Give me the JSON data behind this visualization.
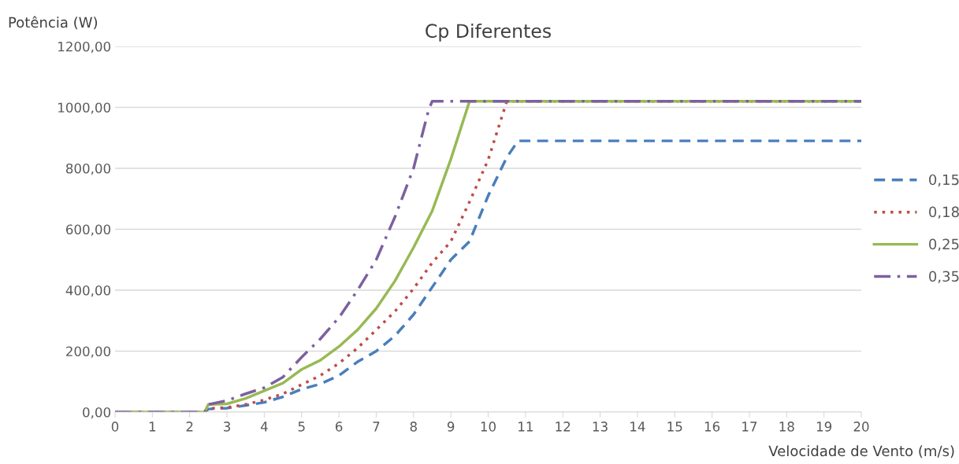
{
  "chart_data": {
    "type": "line",
    "title": "Cp Diferentes",
    "xlabel": "Velocidade de Vento (m/s)",
    "ylabel": "Potência (W)",
    "xlim": [
      0,
      20
    ],
    "xticks": [
      0,
      1,
      2,
      3,
      4,
      5,
      6,
      7,
      8,
      9,
      10,
      11,
      12,
      13,
      14,
      15,
      16,
      17,
      18,
      19,
      20
    ],
    "ylim": [
      0,
      1200
    ],
    "yticks": [
      {
        "value": 0,
        "label": "0,00"
      },
      {
        "value": 200,
        "label": "200,00"
      },
      {
        "value": 400,
        "label": "400,00"
      },
      {
        "value": 600,
        "label": "600,00"
      },
      {
        "value": 800,
        "label": "800,00"
      },
      {
        "value": 1000,
        "label": "1000,00"
      },
      {
        "value": 1200,
        "label": "1200,00"
      }
    ],
    "grid": "y",
    "legend": "right",
    "series": [
      {
        "name": "0,15",
        "color": "#4a7ebb",
        "line_style": "dashed",
        "x": [
          0,
          2.4,
          2.5,
          3,
          3.5,
          4,
          4.5,
          5,
          5.5,
          6,
          6.5,
          7,
          7.5,
          8,
          8.5,
          9,
          9.5,
          10,
          10.5,
          10.8,
          20
        ],
        "values": [
          0,
          0,
          10,
          13,
          22,
          32,
          50,
          75,
          92,
          120,
          165,
          200,
          250,
          320,
          410,
          500,
          560,
          710,
          836,
          890,
          890
        ]
      },
      {
        "name": "0,18",
        "color": "#be4b48",
        "line_style": "dotted",
        "x": [
          0,
          2.4,
          2.5,
          3,
          3.5,
          4,
          4.5,
          5,
          5.5,
          6,
          6.5,
          7,
          7.5,
          8,
          8.5,
          9,
          9.5,
          10,
          10.5,
          20
        ],
        "values": [
          0,
          0,
          12,
          15,
          25,
          40,
          60,
          90,
          120,
          160,
          210,
          270,
          330,
          405,
          490,
          560,
          690,
          828,
          1020,
          1020
        ]
      },
      {
        "name": "0,25",
        "color": "#98b954",
        "line_style": "solid",
        "x": [
          0,
          2.4,
          2.5,
          3,
          3.5,
          4,
          4.5,
          5,
          5.5,
          6,
          6.5,
          7,
          7.5,
          8,
          8.5,
          9,
          9.5,
          20
        ],
        "values": [
          0,
          0,
          25,
          27,
          45,
          70,
          95,
          140,
          170,
          215,
          270,
          340,
          430,
          540,
          660,
          830,
          1020,
          1020
        ]
      },
      {
        "name": "0,35",
        "color": "#7d60a0",
        "line_style": "dashdot",
        "x": [
          0,
          2.4,
          2.5,
          3,
          3.5,
          4,
          4.5,
          5,
          5.5,
          6,
          6.5,
          7,
          7.5,
          8,
          8.4,
          8.5,
          20
        ],
        "values": [
          0,
          0,
          25,
          38,
          60,
          80,
          115,
          180,
          240,
          310,
          400,
          500,
          640,
          800,
          990,
          1020,
          1020
        ]
      }
    ]
  }
}
